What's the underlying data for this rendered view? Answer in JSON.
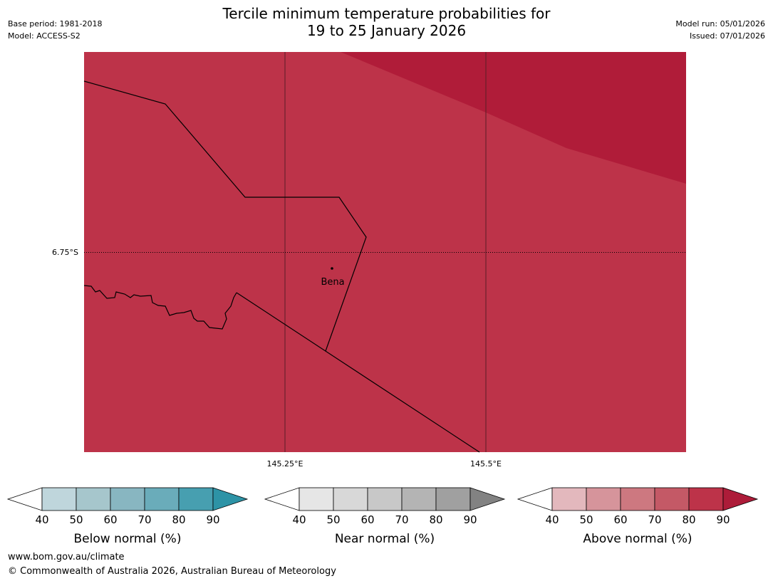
{
  "header": {
    "title_line1": "Tercile minimum temperature probabilities for",
    "title_line2": "19 to 25 January 2026",
    "base_period": "Base period: 1981-2018",
    "model": "Model: ACCESS-S2",
    "model_run": "Model run: 05/01/2026",
    "issued": "Issued: 07/01/2026"
  },
  "map": {
    "background_color": "#bd3349",
    "high_prob_color": "#b01c39",
    "latitude_label": "6.75°S",
    "longitude_labels": [
      "145.25°E",
      "145.5°E"
    ],
    "place": {
      "name": "Bena"
    }
  },
  "colorbars": [
    {
      "label": "Below normal (%)",
      "ticks": [
        "40",
        "50",
        "60",
        "70",
        "80",
        "90"
      ],
      "colors": [
        "#ffffff",
        "#bfd6dc",
        "#a6c6cc",
        "#88b6c1",
        "#6aacba",
        "#479fb0",
        "#2d93a6"
      ]
    },
    {
      "label": "Near normal (%)",
      "ticks": [
        "40",
        "50",
        "60",
        "70",
        "80",
        "90"
      ],
      "colors": [
        "#ffffff",
        "#e6e6e6",
        "#d8d8d8",
        "#c8c8c8",
        "#b4b4b4",
        "#a0a0a0",
        "#828282"
      ]
    },
    {
      "label": "Above normal (%)",
      "ticks": [
        "40",
        "50",
        "60",
        "70",
        "80",
        "90"
      ],
      "colors": [
        "#ffffff",
        "#e3b8bd",
        "#d6949b",
        "#cd7880",
        "#c45966",
        "#bd3349",
        "#ad1c39"
      ]
    }
  ],
  "footer": {
    "url": "www.bom.gov.au/climate",
    "copyright": "© Commonwealth of Australia 2026, Australian Bureau of Meteorology"
  }
}
